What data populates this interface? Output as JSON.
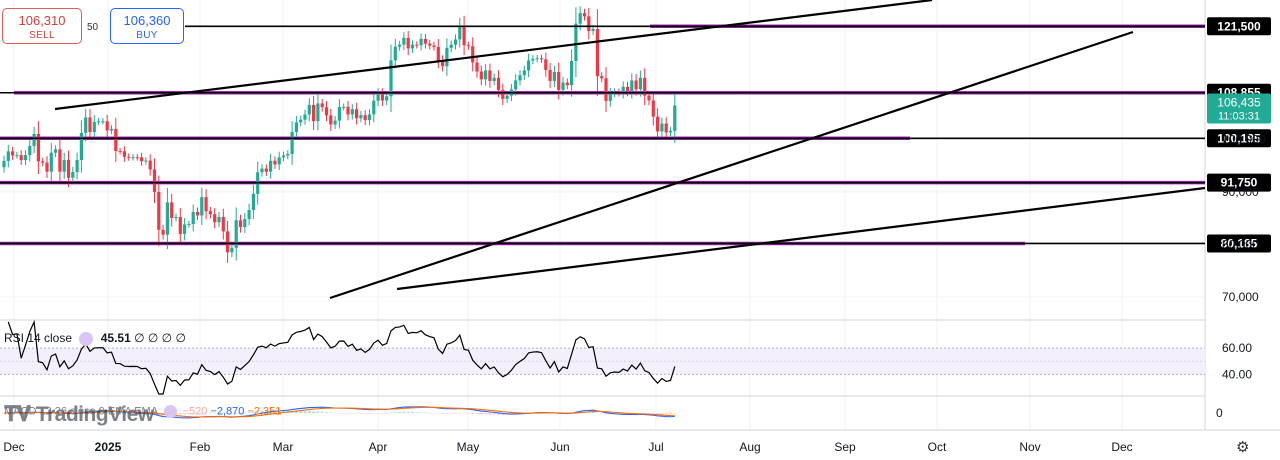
{
  "trade": {
    "sell_price": "106,310",
    "sell_label": "SELL",
    "spread": "50",
    "buy_price": "106,360",
    "buy_label": "BUY"
  },
  "brand": {
    "name": "TradingView"
  },
  "rsi": {
    "label": "RSI 14 close",
    "value": "45.51",
    "extra": "∅ ∅ ∅ ∅",
    "levels": [
      "60.00",
      "40.00"
    ]
  },
  "macd": {
    "label": "MACD 12 26 close 9 EMA EMA",
    "values": [
      "−520",
      "−2,870",
      "−2,351"
    ],
    "zero": "0"
  },
  "colors": {
    "up": "#22ab94",
    "down": "#f23645",
    "level": "#9c27b0",
    "trend": "#000000",
    "price_tag": "#22ab94",
    "rsi": "#000000",
    "macd": "#2962ff",
    "signal": "#ff6d00"
  },
  "chart_data": {
    "type": "candlestick",
    "price_axis": {
      "range": [
        66000,
        126500
      ],
      "ticks": [
        "70,000",
        "80,000",
        "90,000",
        "100,000"
      ],
      "tick_values": [
        70000,
        80000,
        90000,
        100000
      ]
    },
    "time_axis": {
      "labels": [
        "Dec",
        "2025",
        "Feb",
        "Mar",
        "Apr",
        "May",
        "Jun",
        "Jul",
        "Aug",
        "Sep",
        "Oct",
        "Nov",
        "Dec"
      ]
    },
    "levels": [
      {
        "label": "121,500",
        "value": 121500,
        "has_band": true
      },
      {
        "label": "108,855",
        "value": 108855,
        "has_band": true
      },
      {
        "label": "100,195",
        "value": 100195,
        "has_band": true
      },
      {
        "label": "91,750",
        "value": 91750,
        "has_band": true
      },
      {
        "label": "80,185",
        "value": 80185,
        "has_band": true
      }
    ],
    "current_price": {
      "value": "106,435",
      "time": "11:03:31",
      "y": 106435
    },
    "trendlines": [
      {
        "from": [
          2.3,
          108855
        ],
        "to": [
          37.9,
          125800
        ]
      },
      {
        "from": [
          13.6,
          74500
        ],
        "to": [
          46.3,
          123300
        ]
      },
      {
        "from": [
          11.1,
          73800
        ],
        "to": [
          50.1,
          96500
        ]
      }
    ],
    "closes": [
      95883,
      97702,
      96937,
      96993,
      96051,
      96990,
      98745,
      101008,
      95810,
      95564,
      93840,
      97436,
      98085,
      93846,
      96055,
      92686,
      93770,
      96055,
      101225,
      104160,
      101395,
      103315,
      103420,
      103430,
      101675,
      101968,
      97763,
      97718,
      96675,
      96563,
      96590,
      96563,
      95829,
      95957,
      94262,
      89977,
      82780,
      81848,
      87989,
      85042,
      85216,
      82000,
      83798,
      83875,
      86180,
      85510,
      88980,
      86320,
      85750,
      84210,
      85220,
      82480,
      78490,
      79350,
      84590,
      83290,
      84840,
      86550,
      89620,
      93730,
      94430,
      93840,
      95910,
      95220,
      96570,
      96910,
      97210,
      101390,
      103210,
      103730,
      104710,
      106550,
      103450,
      106820,
      106100,
      104560,
      102810,
      103550,
      106130,
      106180,
      104720,
      105720,
      104010,
      104590,
      103640,
      104730,
      107330,
      108660,
      107380,
      108170,
      115020,
      117610,
      118000,
      119300,
      117300,
      118000,
      117900,
      119100,
      118200,
      117830,
      117570,
      115000,
      113900,
      117400,
      118000,
      119000,
      121600,
      117900,
      117700,
      114600,
      112900,
      111400,
      113100,
      111100,
      111700,
      109400,
      107700,
      108300,
      109500,
      111200,
      112200,
      113100,
      115000,
      115300,
      115400,
      115200,
      113200,
      111100,
      112800,
      109400,
      110800,
      110300,
      114900,
      122000,
      124000,
      123400,
      120600,
      121000,
      112000,
      111600,
      107300,
      108700,
      109000,
      108800,
      110000,
      109100,
      111200,
      109500,
      111700,
      108300,
      107400,
      104300,
      101500,
      103000,
      101300,
      101600,
      106435
    ],
    "candle_x_spacing": 4.3,
    "rsi_axis": {
      "range": [
        25,
        80
      ],
      "ticks": [
        60,
        40
      ]
    },
    "macd_axis": {
      "range": [
        -12000,
        12000
      ]
    }
  }
}
